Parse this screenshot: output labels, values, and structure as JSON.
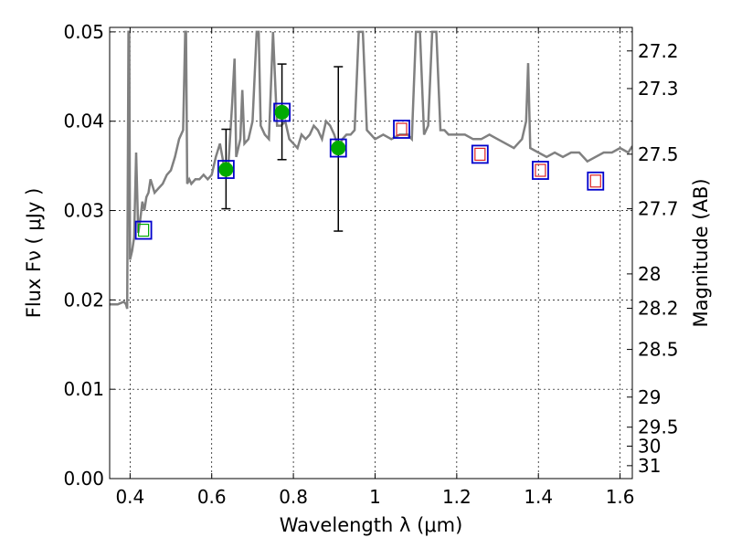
{
  "chart_data": {
    "type": "scatter",
    "title": "",
    "xlabel": "Wavelength  λ (μm)",
    "ylabel": "Flux  Fν  ( μJy )",
    "y2label": "Magnitude (AB)",
    "xlim": [
      0.35,
      1.63
    ],
    "ylim": [
      0.0,
      0.0505
    ],
    "grid": true,
    "x_ticks": [
      0.4,
      0.6,
      0.8,
      1.0,
      1.2,
      1.4,
      1.6
    ],
    "x_tick_labels": [
      "0.4",
      "0.6",
      "0.8",
      "1",
      "1.2",
      "1.4",
      "1.6"
    ],
    "y_ticks": [
      0.0,
      0.01,
      0.02,
      0.03,
      0.04,
      0.05
    ],
    "y_tick_labels": [
      "0.00",
      "0.01",
      "0.02",
      "0.03",
      "0.04",
      "0.05"
    ],
    "y2_ticks": [
      27.2,
      27.3,
      27.5,
      27.7,
      28,
      28.2,
      28.5,
      29,
      29.5,
      30,
      31
    ],
    "y2_tick_labels": [
      "27.2",
      "27.3",
      "27.5",
      "27.7",
      "28",
      "28.2",
      "28.5",
      "29",
      "29.5",
      "30",
      "31"
    ],
    "colors": {
      "spectrum": "#808080",
      "observed": "#00aa00",
      "model_box": "#0000cc",
      "model_inner_observed": "#00aa00",
      "model_inner_predicted": "#dd2222",
      "errorbar": "#000000"
    },
    "series": [
      {
        "kind": "spectrum",
        "x": [
          0.35,
          0.37,
          0.385,
          0.39,
          0.393,
          0.396,
          0.398,
          0.4,
          0.405,
          0.41,
          0.415,
          0.42,
          0.425,
          0.43,
          0.435,
          0.44,
          0.445,
          0.45,
          0.46,
          0.47,
          0.48,
          0.49,
          0.5,
          0.51,
          0.52,
          0.53,
          0.535,
          0.537,
          0.54,
          0.545,
          0.55,
          0.56,
          0.57,
          0.58,
          0.59,
          0.6,
          0.61,
          0.62,
          0.63,
          0.64,
          0.65,
          0.656,
          0.66,
          0.665,
          0.67,
          0.675,
          0.68,
          0.69,
          0.7,
          0.71,
          0.715,
          0.72,
          0.73,
          0.74,
          0.75,
          0.76,
          0.77,
          0.78,
          0.79,
          0.8,
          0.81,
          0.82,
          0.83,
          0.84,
          0.85,
          0.86,
          0.87,
          0.88,
          0.89,
          0.9,
          0.91,
          0.92,
          0.93,
          0.94,
          0.95,
          0.96,
          0.97,
          0.98,
          0.99,
          1.0,
          1.02,
          1.04,
          1.06,
          1.08,
          1.09,
          1.1,
          1.11,
          1.12,
          1.13,
          1.14,
          1.15,
          1.16,
          1.17,
          1.18,
          1.2,
          1.22,
          1.24,
          1.26,
          1.28,
          1.3,
          1.32,
          1.34,
          1.36,
          1.37,
          1.375,
          1.38,
          1.4,
          1.42,
          1.44,
          1.46,
          1.48,
          1.5,
          1.52,
          1.54,
          1.56,
          1.58,
          1.6,
          1.62,
          1.63
        ],
        "y": [
          0.0195,
          0.0195,
          0.0198,
          0.0195,
          0.019,
          0.05,
          0.05,
          0.0245,
          0.0255,
          0.027,
          0.0365,
          0.0275,
          0.029,
          0.031,
          0.03,
          0.0315,
          0.032,
          0.0335,
          0.032,
          0.0325,
          0.033,
          0.034,
          0.0345,
          0.036,
          0.038,
          0.039,
          0.05,
          0.05,
          0.033,
          0.0335,
          0.033,
          0.0335,
          0.0335,
          0.034,
          0.0335,
          0.034,
          0.036,
          0.0375,
          0.035,
          0.0345,
          0.042,
          0.047,
          0.036,
          0.037,
          0.038,
          0.0435,
          0.0375,
          0.038,
          0.04,
          0.05,
          0.05,
          0.0395,
          0.0385,
          0.038,
          0.05,
          0.0395,
          0.0395,
          0.04,
          0.038,
          0.0375,
          0.037,
          0.0385,
          0.038,
          0.0385,
          0.0395,
          0.039,
          0.038,
          0.04,
          0.0395,
          0.0385,
          0.037,
          0.038,
          0.0385,
          0.0385,
          0.039,
          0.05,
          0.05,
          0.039,
          0.0385,
          0.038,
          0.0385,
          0.038,
          0.0385,
          0.0385,
          0.038,
          0.05,
          0.05,
          0.0385,
          0.0395,
          0.05,
          0.05,
          0.039,
          0.039,
          0.0385,
          0.0385,
          0.0385,
          0.038,
          0.038,
          0.0385,
          0.038,
          0.0375,
          0.037,
          0.038,
          0.04,
          0.0465,
          0.037,
          0.0365,
          0.036,
          0.0365,
          0.036,
          0.0365,
          0.0365,
          0.0355,
          0.036,
          0.0365,
          0.0365,
          0.037,
          0.0365,
          0.0372
        ]
      },
      {
        "kind": "observed",
        "x": [
          0.635,
          0.772,
          0.91
        ],
        "y": [
          0.0346,
          0.041,
          0.037
        ],
        "yerr_low": [
          0.0302,
          0.0357,
          0.0277
        ],
        "yerr_high": [
          0.0391,
          0.0464,
          0.0461
        ]
      },
      {
        "kind": "model_boxes",
        "x": [
          0.433,
          0.635,
          0.772,
          0.91,
          1.065,
          1.257,
          1.405,
          1.54
        ],
        "y": [
          0.0278,
          0.0346,
          0.041,
          0.037,
          0.0391,
          0.0363,
          0.0345,
          0.0333
        ],
        "inner": [
          "observed",
          "none",
          "none",
          "none",
          "predicted",
          "predicted",
          "predicted",
          "predicted"
        ]
      }
    ]
  }
}
